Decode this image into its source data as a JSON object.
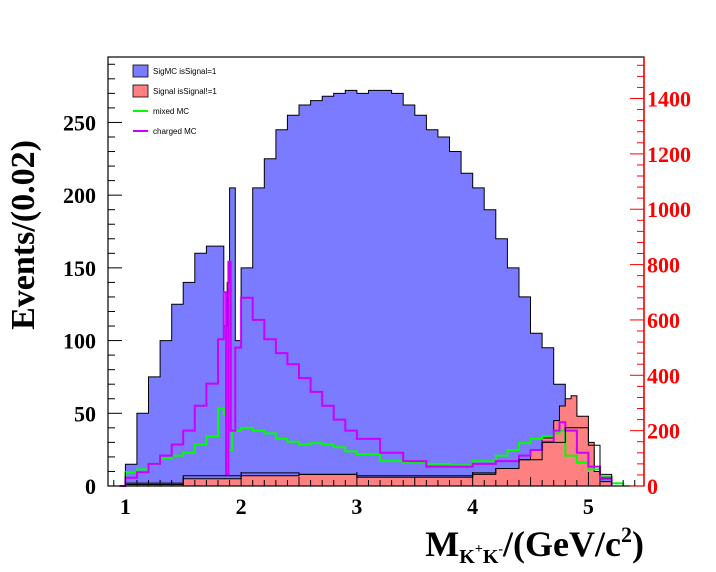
{
  "chart_data": {
    "type": "area",
    "x_axis": {
      "title_main": "M",
      "title_sub": "K",
      "title_sup1": "+",
      "title_sub2": "K",
      "title_sup2": "-",
      "title_rest": "/(GeV/c",
      "title_pow": "2",
      "title_close": ")",
      "range": [
        0.85,
        5.48
      ],
      "ticks": [
        1,
        2,
        3,
        4,
        5
      ],
      "tick_labels": [
        "1",
        "2",
        "3",
        "4",
        "5"
      ]
    },
    "y_axis_left": {
      "title": "Events/(0.02)",
      "range": [
        0,
        295
      ],
      "ticks": [
        0,
        50,
        100,
        150,
        200,
        250
      ],
      "tick_labels": [
        "0",
        "50",
        "100",
        "150",
        "200",
        "250"
      ]
    },
    "y_axis_right": {
      "color": "#ff0000",
      "range": [
        0,
        1550
      ],
      "ticks": [
        0,
        200,
        400,
        600,
        800,
        1000,
        1200,
        1400
      ],
      "tick_labels": [
        "0",
        "200",
        "400",
        "600",
        "800",
        "1000",
        "1200",
        "1400"
      ]
    },
    "legend_position": "top-left",
    "series": [
      {
        "name": "SigMC isSignal=1",
        "style": "filled",
        "color": "#7b7bff",
        "axis": "left",
        "x": [
          0.95,
          1.0,
          1.1,
          1.2,
          1.3,
          1.4,
          1.5,
          1.6,
          1.7,
          1.8,
          1.85,
          1.88,
          1.9,
          1.95,
          2.0,
          2.1,
          2.2,
          2.3,
          2.4,
          2.5,
          2.6,
          2.7,
          2.8,
          2.9,
          3.0,
          3.1,
          3.2,
          3.3,
          3.4,
          3.5,
          3.6,
          3.7,
          3.8,
          3.9,
          4.0,
          4.1,
          4.2,
          4.3,
          4.4,
          4.5,
          4.6,
          4.7,
          4.8,
          4.9,
          5.0,
          5.05,
          5.1,
          5.2
        ],
        "y": [
          0,
          15,
          50,
          75,
          100,
          125,
          140,
          160,
          165,
          165,
          110,
          140,
          205,
          100,
          150,
          205,
          225,
          245,
          255,
          262,
          265,
          268,
          270,
          272,
          270,
          272,
          272,
          270,
          262,
          255,
          245,
          240,
          230,
          215,
          205,
          190,
          170,
          150,
          130,
          105,
          95,
          70,
          50,
          40,
          25,
          10,
          5,
          0
        ]
      },
      {
        "name": "Signal isSignal!=1",
        "style": "filled",
        "color": "#ff8080",
        "axis": "left",
        "x": [
          0.95,
          1.0,
          1.5,
          2.0,
          2.5,
          3.0,
          3.5,
          4.0,
          4.2,
          4.4,
          4.5,
          4.6,
          4.7,
          4.75,
          4.8,
          4.85,
          4.9,
          5.0,
          5.05,
          5.1,
          5.2
        ],
        "y": [
          0,
          1,
          5,
          7,
          8,
          6,
          6,
          8,
          12,
          18,
          25,
          33,
          45,
          55,
          60,
          62,
          48,
          30,
          10,
          3,
          0
        ]
      },
      {
        "name": "mixed MC",
        "style": "line",
        "color": "#00ff00",
        "axis": "right",
        "x": [
          0.95,
          1.0,
          1.1,
          1.2,
          1.3,
          1.4,
          1.5,
          1.6,
          1.7,
          1.8,
          1.85,
          1.88,
          1.92,
          2.0,
          2.1,
          2.2,
          2.3,
          2.4,
          2.5,
          2.6,
          2.7,
          2.8,
          2.9,
          3.0,
          3.2,
          3.4,
          3.6,
          3.8,
          4.0,
          4.2,
          4.3,
          4.4,
          4.5,
          4.6,
          4.7,
          4.75,
          4.8,
          4.9,
          5.0,
          5.1,
          5.2,
          5.3
        ],
        "y": [
          0,
          50,
          60,
          80,
          100,
          110,
          120,
          150,
          180,
          280,
          260,
          130,
          200,
          210,
          200,
          190,
          170,
          160,
          150,
          155,
          150,
          140,
          125,
          115,
          90,
          85,
          80,
          75,
          90,
          110,
          130,
          155,
          170,
          180,
          190,
          200,
          110,
          85,
          60,
          35,
          10,
          0
        ]
      },
      {
        "name": "charged MC",
        "style": "line",
        "color": "#cc00ff",
        "axis": "right",
        "x": [
          0.95,
          1.0,
          1.1,
          1.2,
          1.3,
          1.4,
          1.5,
          1.6,
          1.7,
          1.8,
          1.85,
          1.87,
          1.89,
          1.91,
          1.95,
          2.0,
          2.1,
          2.2,
          2.3,
          2.4,
          2.5,
          2.6,
          2.7,
          2.8,
          2.9,
          3.0,
          3.2,
          3.4,
          3.6,
          3.8,
          4.0,
          4.2,
          4.4,
          4.5,
          4.6,
          4.7,
          4.75,
          4.8,
          4.9,
          5.0,
          5.1,
          5.2
        ],
        "y": [
          0,
          30,
          50,
          80,
          110,
          150,
          200,
          290,
          370,
          530,
          700,
          40,
          810,
          200,
          500,
          680,
          600,
          530,
          480,
          440,
          390,
          340,
          290,
          240,
          200,
          170,
          120,
          90,
          70,
          70,
          80,
          90,
          110,
          130,
          160,
          200,
          230,
          200,
          120,
          70,
          30,
          0
        ]
      },
      {
        "name": "",
        "style": "line",
        "color": "#000000",
        "axis": "left",
        "x": [
          0.95,
          1.0,
          1.5,
          2.0,
          2.5,
          3.0,
          3.5,
          4.0,
          4.2,
          4.4,
          4.6,
          4.8,
          5.0,
          5.1,
          5.2
        ],
        "y": [
          0,
          2,
          7,
          9,
          8,
          7,
          7,
          9,
          12,
          18,
          30,
          40,
          28,
          8,
          0
        ]
      }
    ]
  }
}
